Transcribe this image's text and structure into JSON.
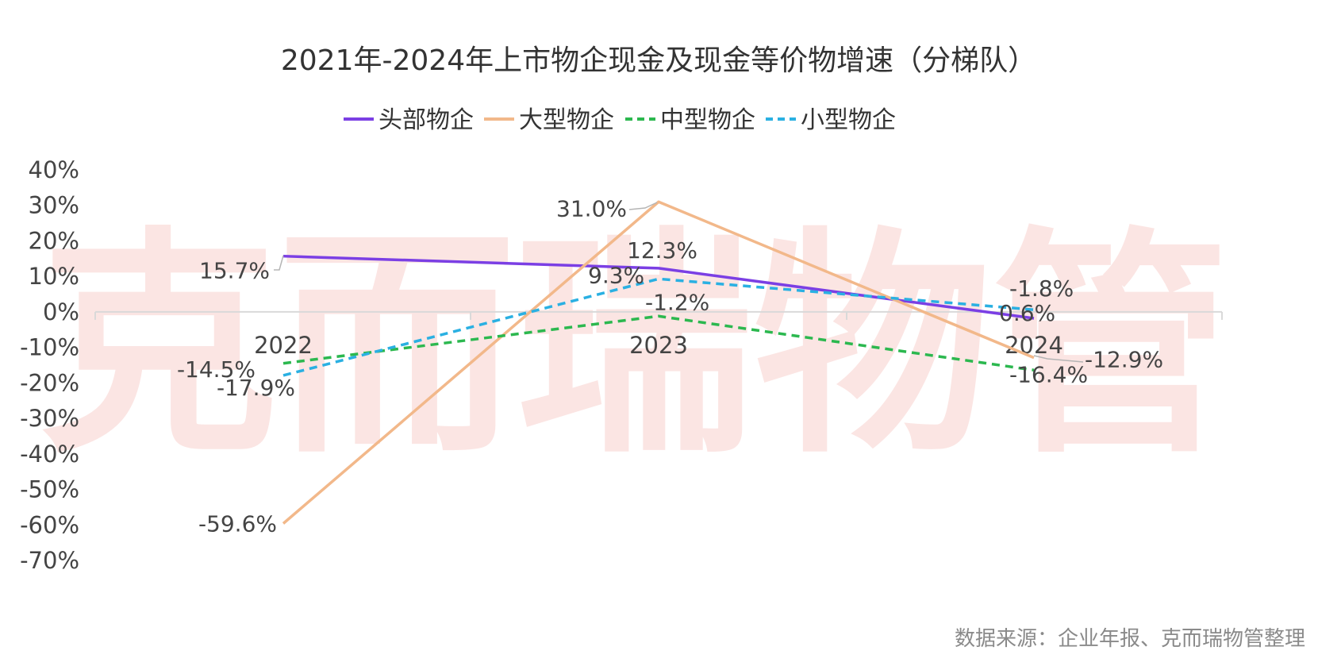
{
  "chart_data": {
    "type": "line",
    "title": "2021年-2024年上市物企现金及现金等价物增速（分梯队）",
    "categories": [
      "2022",
      "2023",
      "2024"
    ],
    "ylim": [
      -70,
      40
    ],
    "yticks": [
      40,
      30,
      20,
      10,
      0,
      -10,
      -20,
      -30,
      -40,
      -50,
      -60,
      -70
    ],
    "ytick_labels": [
      "40%",
      "30%",
      "20%",
      "10%",
      "0%",
      "-10%",
      "-20%",
      "-30%",
      "-40%",
      "-50%",
      "-60%",
      "-70%"
    ],
    "legend_position": "top-center",
    "grid": false,
    "series": [
      {
        "name": "头部物企",
        "values": [
          15.7,
          12.3,
          -1.8
        ],
        "labels": [
          "15.7%",
          "12.3%",
          "-1.8%"
        ],
        "color": "#7b3fe4",
        "style": "solid"
      },
      {
        "name": "大型物企",
        "values": [
          -59.6,
          31.0,
          -12.9
        ],
        "labels": [
          "-59.6%",
          "31.0%",
          "-12.9%"
        ],
        "color": "#f2b88a",
        "style": "solid"
      },
      {
        "name": "中型物企",
        "values": [
          -14.5,
          -1.2,
          -16.4
        ],
        "labels": [
          "-14.5%",
          "-1.2%",
          "-16.4%"
        ],
        "color": "#2cb84f",
        "style": "dashed"
      },
      {
        "name": "小型物企",
        "values": [
          -17.9,
          9.3,
          0.6
        ],
        "labels": [
          "-17.9%",
          "9.3%",
          "0.6%"
        ],
        "color": "#2ab0e2",
        "style": "dashed"
      }
    ]
  },
  "watermark": "克而瑞物管",
  "source": "数据来源：企业年报、克而瑞物管整理"
}
